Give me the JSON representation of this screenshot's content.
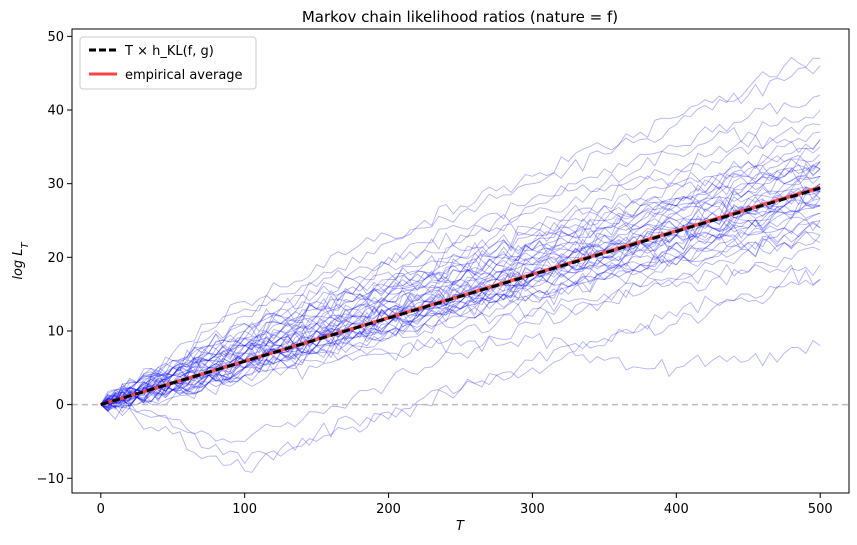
{
  "chart_data": {
    "type": "line",
    "title": "Markov chain likelihood ratios (nature = f)",
    "xlabel": "T",
    "ylabel": "log L",
    "ylabel_subscript": "T",
    "xlim": [
      -20,
      520
    ],
    "ylim": [
      -12,
      51
    ],
    "x_ticks": [
      0,
      100,
      200,
      300,
      400,
      500
    ],
    "y_ticks": [
      -10,
      0,
      10,
      20,
      30,
      40,
      50
    ],
    "grid": false,
    "legend_placement": "top-left",
    "reference_line": {
      "y": 0,
      "style": "dashed",
      "color": "#bbbbbb"
    },
    "series": [
      {
        "name": "T × h_KL(f, g)",
        "style": "dashed",
        "color": "#000000",
        "x": [
          0,
          500
        ],
        "y": [
          0,
          29.4
        ]
      },
      {
        "name": "empirical average",
        "style": "solid",
        "color": "#ff4444",
        "x": [
          0,
          100,
          200,
          300,
          400,
          500
        ],
        "y": [
          0,
          5.9,
          11.8,
          17.7,
          23.6,
          29.5
        ]
      }
    ],
    "simulated_paths": {
      "count": 50,
      "color": "#0000ff",
      "x": [
        0,
        25,
        50,
        75,
        100,
        125,
        150,
        175,
        200,
        225,
        250,
        275,
        300,
        325,
        350,
        375,
        400,
        425,
        450,
        475,
        500
      ],
      "paths": [
        [
          0,
          3,
          5,
          8,
          10,
          12,
          13,
          15,
          16,
          18,
          19,
          21,
          22,
          24,
          25,
          27,
          28,
          30,
          31,
          33,
          34
        ],
        [
          0,
          2,
          4,
          6,
          8,
          9,
          11,
          12,
          14,
          15,
          17,
          18,
          20,
          21,
          23,
          24,
          26,
          27,
          29,
          30,
          31
        ],
        [
          0,
          1,
          3,
          5,
          6,
          8,
          9,
          11,
          12,
          14,
          15,
          17,
          18,
          20,
          21,
          22,
          24,
          25,
          27,
          28,
          29
        ],
        [
          0,
          -1,
          -3,
          -6,
          -8,
          -6,
          -4,
          -2,
          -1,
          1,
          2,
          4,
          5,
          7,
          8,
          10,
          11,
          13,
          14,
          16,
          17
        ],
        [
          0,
          -2,
          -4,
          -7,
          -9,
          -7,
          -5,
          -3,
          -2,
          0,
          2,
          4,
          6,
          8,
          9,
          11,
          12,
          14,
          15,
          17,
          19
        ],
        [
          0,
          1,
          2,
          4,
          5,
          7,
          8,
          10,
          11,
          12,
          14,
          15,
          17,
          18,
          20,
          21,
          23,
          24,
          25,
          27,
          28
        ],
        [
          0,
          2,
          5,
          7,
          10,
          12,
          14,
          15,
          17,
          19,
          20,
          22,
          24,
          25,
          27,
          28,
          30,
          31,
          33,
          34,
          36
        ],
        [
          0,
          3,
          6,
          9,
          12,
          14,
          16,
          18,
          20,
          22,
          24,
          26,
          28,
          30,
          32,
          34,
          35,
          37,
          39,
          41,
          42
        ],
        [
          0,
          3,
          6,
          10,
          13,
          15,
          17,
          20,
          22,
          24,
          26,
          28,
          30,
          32,
          34,
          36,
          38,
          40,
          42,
          44,
          46
        ],
        [
          0,
          3,
          7,
          11,
          14,
          16,
          19,
          21,
          23,
          25,
          27,
          29,
          31,
          33,
          35,
          37,
          39,
          41,
          43,
          46,
          47
        ],
        [
          0,
          2,
          3,
          5,
          6,
          8,
          9,
          11,
          12,
          13,
          15,
          16,
          18,
          19,
          21,
          22,
          23,
          25,
          26,
          28,
          29
        ],
        [
          0,
          1,
          2,
          4,
          6,
          7,
          9,
          10,
          12,
          13,
          14,
          16,
          17,
          19,
          20,
          22,
          23,
          24,
          26,
          27,
          28
        ],
        [
          0,
          2,
          4,
          6,
          8,
          10,
          12,
          14,
          16,
          17,
          19,
          20,
          22,
          23,
          25,
          27,
          28,
          30,
          31,
          32,
          33
        ],
        [
          0,
          1,
          3,
          4,
          6,
          7,
          8,
          10,
          11,
          13,
          14,
          15,
          17,
          18,
          19,
          21,
          22,
          23,
          25,
          26,
          27
        ],
        [
          0,
          1,
          2,
          3,
          4,
          5,
          6,
          7,
          7,
          8,
          8,
          8,
          9,
          8,
          6,
          5,
          5,
          6,
          6,
          7,
          8
        ],
        [
          0,
          2,
          4,
          6,
          8,
          10,
          11,
          13,
          14,
          16,
          17,
          19,
          20,
          21,
          23,
          24,
          26,
          27,
          29,
          30,
          31
        ],
        [
          0,
          2,
          4,
          5,
          7,
          9,
          10,
          12,
          13,
          15,
          16,
          17,
          19,
          20,
          21,
          23,
          24,
          25,
          27,
          28,
          30
        ],
        [
          0,
          1,
          3,
          5,
          6,
          8,
          10,
          12,
          13,
          14,
          15,
          17,
          18,
          19,
          20,
          22,
          23,
          24,
          25,
          26,
          27
        ],
        [
          0,
          0,
          1,
          2,
          3,
          4,
          5,
          6,
          7,
          8,
          10,
          11,
          12,
          13,
          14,
          15,
          16,
          17,
          18,
          20,
          21
        ],
        [
          0,
          1,
          2,
          3,
          5,
          6,
          7,
          9,
          10,
          11,
          12,
          14,
          15,
          16,
          17,
          18,
          19,
          20,
          21,
          22,
          23
        ],
        [
          0,
          2,
          4,
          6,
          8,
          10,
          12,
          13,
          15,
          16,
          18,
          19,
          21,
          22,
          24,
          25,
          27,
          28,
          30,
          31,
          32
        ],
        [
          0,
          3,
          5,
          7,
          9,
          11,
          13,
          15,
          17,
          18,
          20,
          22,
          23,
          25,
          27,
          28,
          30,
          31,
          33,
          35,
          36
        ],
        [
          0,
          2,
          3,
          4,
          5,
          7,
          8,
          9,
          11,
          12,
          13,
          15,
          16,
          17,
          18,
          19,
          20,
          22,
          23,
          24,
          25
        ],
        [
          0,
          1,
          2,
          4,
          5,
          6,
          7,
          9,
          10,
          11,
          13,
          14,
          15,
          16,
          17,
          18,
          20,
          21,
          22,
          23,
          24
        ],
        [
          0,
          2,
          5,
          8,
          11,
          13,
          15,
          17,
          19,
          21,
          22,
          24,
          26,
          27,
          29,
          31,
          32,
          34,
          35,
          37,
          38
        ],
        [
          0,
          1,
          3,
          4,
          5,
          7,
          8,
          9,
          10,
          12,
          13,
          14,
          15,
          16,
          18,
          19,
          20,
          21,
          22,
          23,
          22
        ],
        [
          0,
          3,
          5,
          8,
          10,
          12,
          14,
          16,
          18,
          19,
          21,
          23,
          24,
          26,
          28,
          30,
          31,
          33,
          34,
          36,
          37
        ],
        [
          0,
          1,
          3,
          5,
          7,
          9,
          10,
          12,
          13,
          14,
          16,
          17,
          19,
          20,
          21,
          23,
          24,
          26,
          27,
          28,
          29
        ],
        [
          0,
          0,
          1,
          3,
          4,
          6,
          7,
          8,
          10,
          11,
          12,
          14,
          15,
          16,
          18,
          19,
          20,
          22,
          23,
          24,
          26
        ],
        [
          0,
          2,
          4,
          7,
          9,
          11,
          13,
          14,
          16,
          17,
          19,
          20,
          22,
          23,
          25,
          26,
          28,
          29,
          31,
          32,
          33
        ],
        [
          0,
          1,
          2,
          3,
          4,
          6,
          7,
          8,
          9,
          10,
          11,
          12,
          13,
          14,
          15,
          16,
          17,
          18,
          18,
          18,
          17
        ],
        [
          0,
          2,
          5,
          7,
          9,
          11,
          12,
          14,
          15,
          17,
          18,
          20,
          21,
          23,
          24,
          26,
          27,
          28,
          30,
          31,
          32
        ],
        [
          0,
          1,
          3,
          4,
          6,
          7,
          9,
          10,
          11,
          13,
          14,
          15,
          17,
          18,
          19,
          21,
          22,
          23,
          24,
          26,
          27
        ],
        [
          0,
          -1,
          -2,
          -4,
          -5,
          -3,
          -1,
          1,
          3,
          5,
          7,
          9,
          11,
          12,
          14,
          16,
          17,
          19,
          21,
          22,
          24
        ],
        [
          0,
          2,
          4,
          6,
          7,
          9,
          11,
          12,
          14,
          15,
          17,
          18,
          20,
          21,
          22,
          24,
          25,
          27,
          28,
          29,
          31
        ],
        [
          0,
          3,
          6,
          8,
          11,
          13,
          15,
          17,
          19,
          21,
          23,
          25,
          27,
          29,
          30,
          32,
          34,
          36,
          37,
          39,
          40
        ],
        [
          0,
          1,
          2,
          3,
          5,
          6,
          8,
          9,
          10,
          12,
          13,
          14,
          16,
          17,
          18,
          19,
          21,
          22,
          23,
          24,
          25
        ],
        [
          0,
          2,
          4,
          5,
          7,
          8,
          10,
          11,
          13,
          14,
          16,
          17,
          18,
          20,
          21,
          23,
          24,
          26,
          27,
          28,
          30
        ],
        [
          0,
          1,
          3,
          5,
          7,
          8,
          10,
          11,
          13,
          14,
          15,
          17,
          18,
          20,
          21,
          22,
          24,
          25,
          26,
          28,
          29
        ],
        [
          0,
          2,
          3,
          5,
          7,
          9,
          10,
          12,
          13,
          15,
          16,
          18,
          19,
          20,
          22,
          23,
          25,
          26,
          28,
          29,
          30
        ],
        [
          0,
          1,
          2,
          4,
          5,
          7,
          8,
          9,
          11,
          12,
          13,
          15,
          16,
          17,
          19,
          20,
          21,
          23,
          24,
          25,
          26
        ],
        [
          0,
          2,
          4,
          6,
          8,
          10,
          12,
          13,
          15,
          17,
          18,
          20,
          21,
          23,
          24,
          26,
          27,
          29,
          30,
          32,
          33
        ],
        [
          0,
          2,
          4,
          6,
          8,
          9,
          11,
          13,
          14,
          16,
          17,
          19,
          20,
          22,
          23,
          24,
          26,
          27,
          29,
          30,
          32
        ],
        [
          0,
          1,
          3,
          4,
          6,
          8,
          9,
          11,
          12,
          13,
          15,
          16,
          18,
          19,
          20,
          22,
          23,
          24,
          26,
          27,
          28
        ],
        [
          0,
          2,
          3,
          5,
          6,
          8,
          9,
          11,
          12,
          14,
          15,
          16,
          18,
          19,
          20,
          22,
          23,
          24,
          26,
          27,
          29
        ],
        [
          0,
          1,
          2,
          4,
          5,
          7,
          8,
          10,
          11,
          12,
          14,
          15,
          17,
          18,
          19,
          20,
          22,
          23,
          24,
          26,
          27
        ],
        [
          0,
          3,
          5,
          7,
          9,
          11,
          13,
          15,
          16,
          18,
          20,
          21,
          23,
          24,
          26,
          27,
          29,
          30,
          32,
          33,
          35
        ],
        [
          0,
          1,
          2,
          3,
          4,
          6,
          7,
          8,
          9,
          11,
          12,
          13,
          14,
          15,
          17,
          18,
          19,
          20,
          21,
          22,
          23
        ],
        [
          0,
          2,
          4,
          6,
          8,
          10,
          11,
          13,
          15,
          16,
          18,
          19,
          21,
          22,
          24,
          25,
          27,
          28,
          30,
          31,
          32
        ],
        [
          0,
          1,
          2,
          4,
          6,
          7,
          9,
          10,
          12,
          13,
          15,
          16,
          18,
          19,
          20,
          22,
          23,
          25,
          26,
          27,
          29
        ]
      ]
    }
  }
}
